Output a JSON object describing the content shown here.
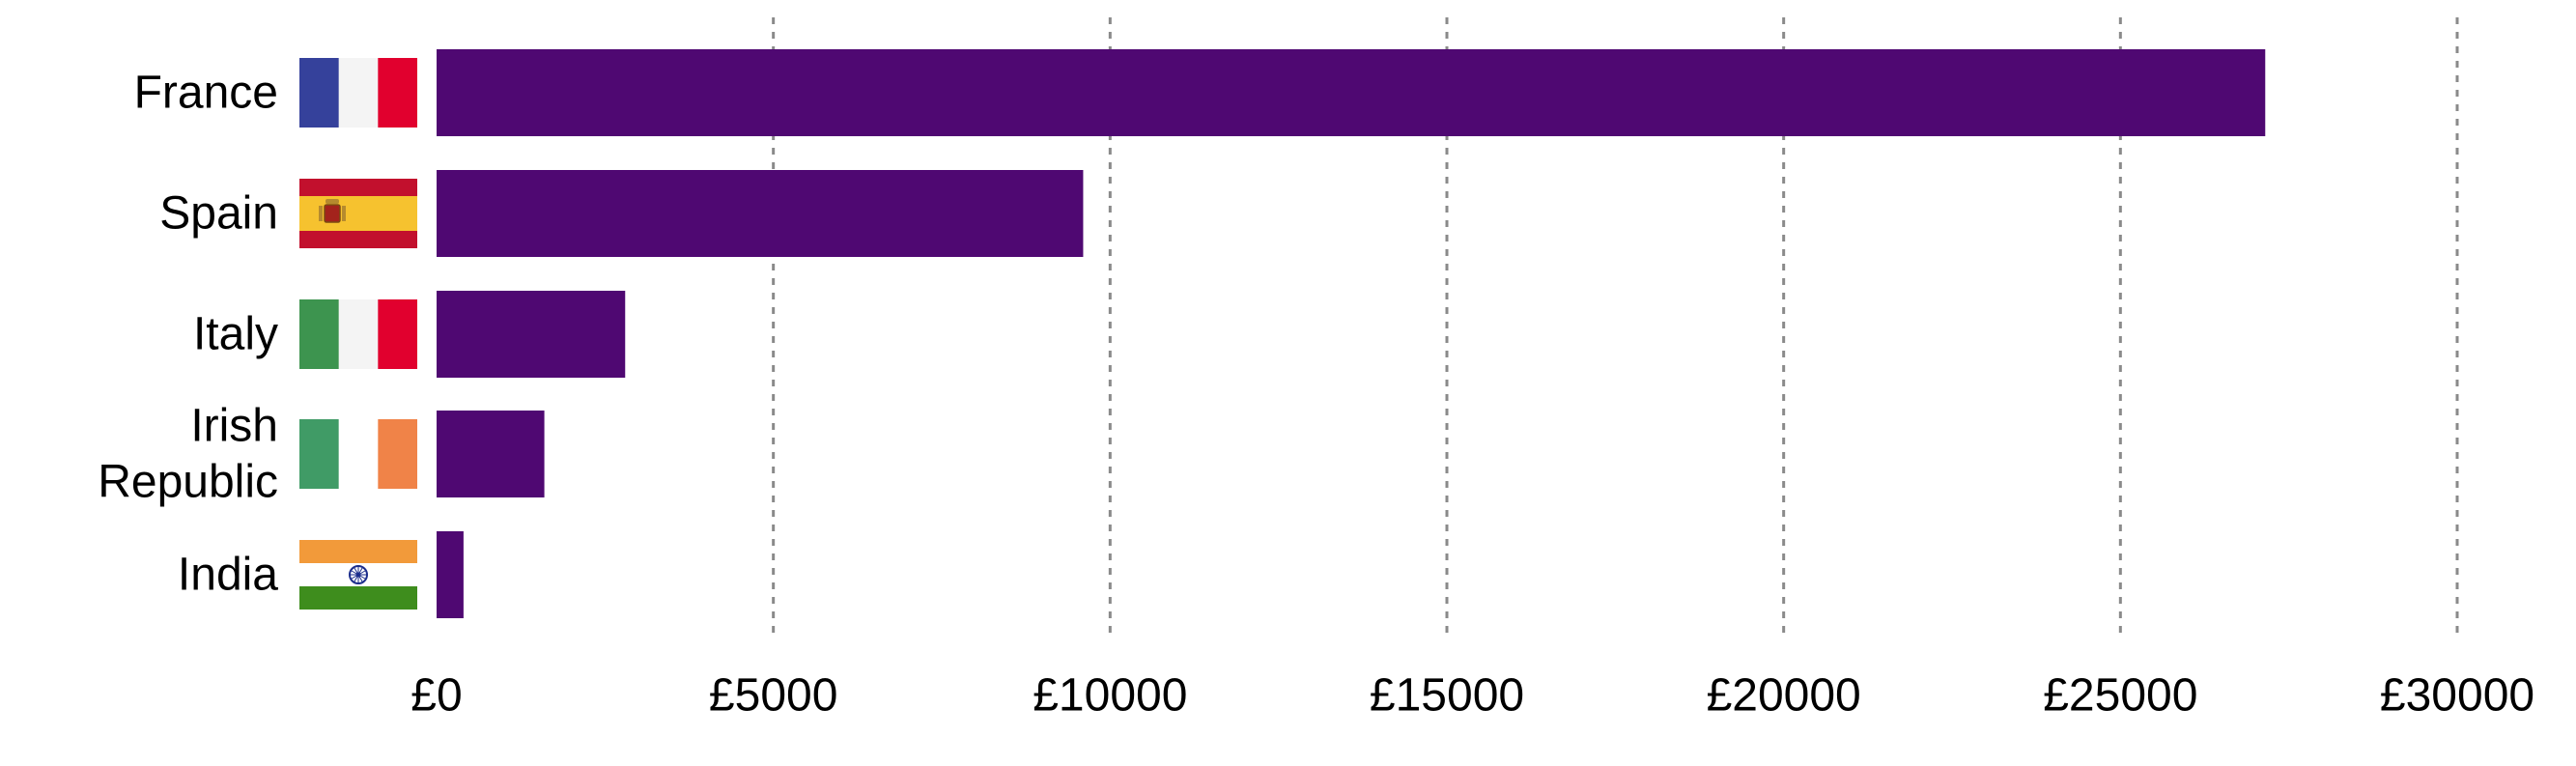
{
  "chart_data": {
    "type": "bar",
    "orientation": "horizontal",
    "title": "",
    "xlabel": "",
    "ylabel": "",
    "categories": [
      "France",
      "Spain",
      "Italy",
      "Irish Republic",
      "India"
    ],
    "category_lines": [
      [
        "France"
      ],
      [
        "Spain"
      ],
      [
        "Italy"
      ],
      [
        "Irish",
        "Republic"
      ],
      [
        "India"
      ]
    ],
    "values": [
      27150,
      9600,
      2800,
      1600,
      400
    ],
    "xlim": [
      0,
      30000
    ],
    "ticks": [
      0,
      5000,
      10000,
      15000,
      20000,
      25000,
      30000
    ],
    "tick_labels": [
      "£0",
      "£5000",
      "£10000",
      "£15000",
      "£20000",
      "£25000",
      "£30000"
    ],
    "grid": "vertical dashed",
    "legend": "none",
    "bar_color": "#4f0872",
    "grid_color": "#8a8a8a",
    "flags": [
      {
        "country": "France",
        "icon": "france-flag-icon",
        "colors": [
          "#35419b",
          "#f4f4f4",
          "#e1002e"
        ]
      },
      {
        "country": "Spain",
        "icon": "spain-flag-icon",
        "colors": [
          "#c2102d",
          "#f6c22f",
          "#c2102d"
        ]
      },
      {
        "country": "Italy",
        "icon": "italy-flag-icon",
        "colors": [
          "#3d944f",
          "#f4f4f4",
          "#e1002e"
        ]
      },
      {
        "country": "Irish Republic",
        "icon": "ireland-flag-icon",
        "colors": [
          "#409b66",
          "#ffffff",
          "#f08348"
        ]
      },
      {
        "country": "India",
        "icon": "india-flag-icon",
        "colors": [
          "#f29a3a",
          "#ffffff",
          "#3e8d1d"
        ]
      }
    ]
  }
}
